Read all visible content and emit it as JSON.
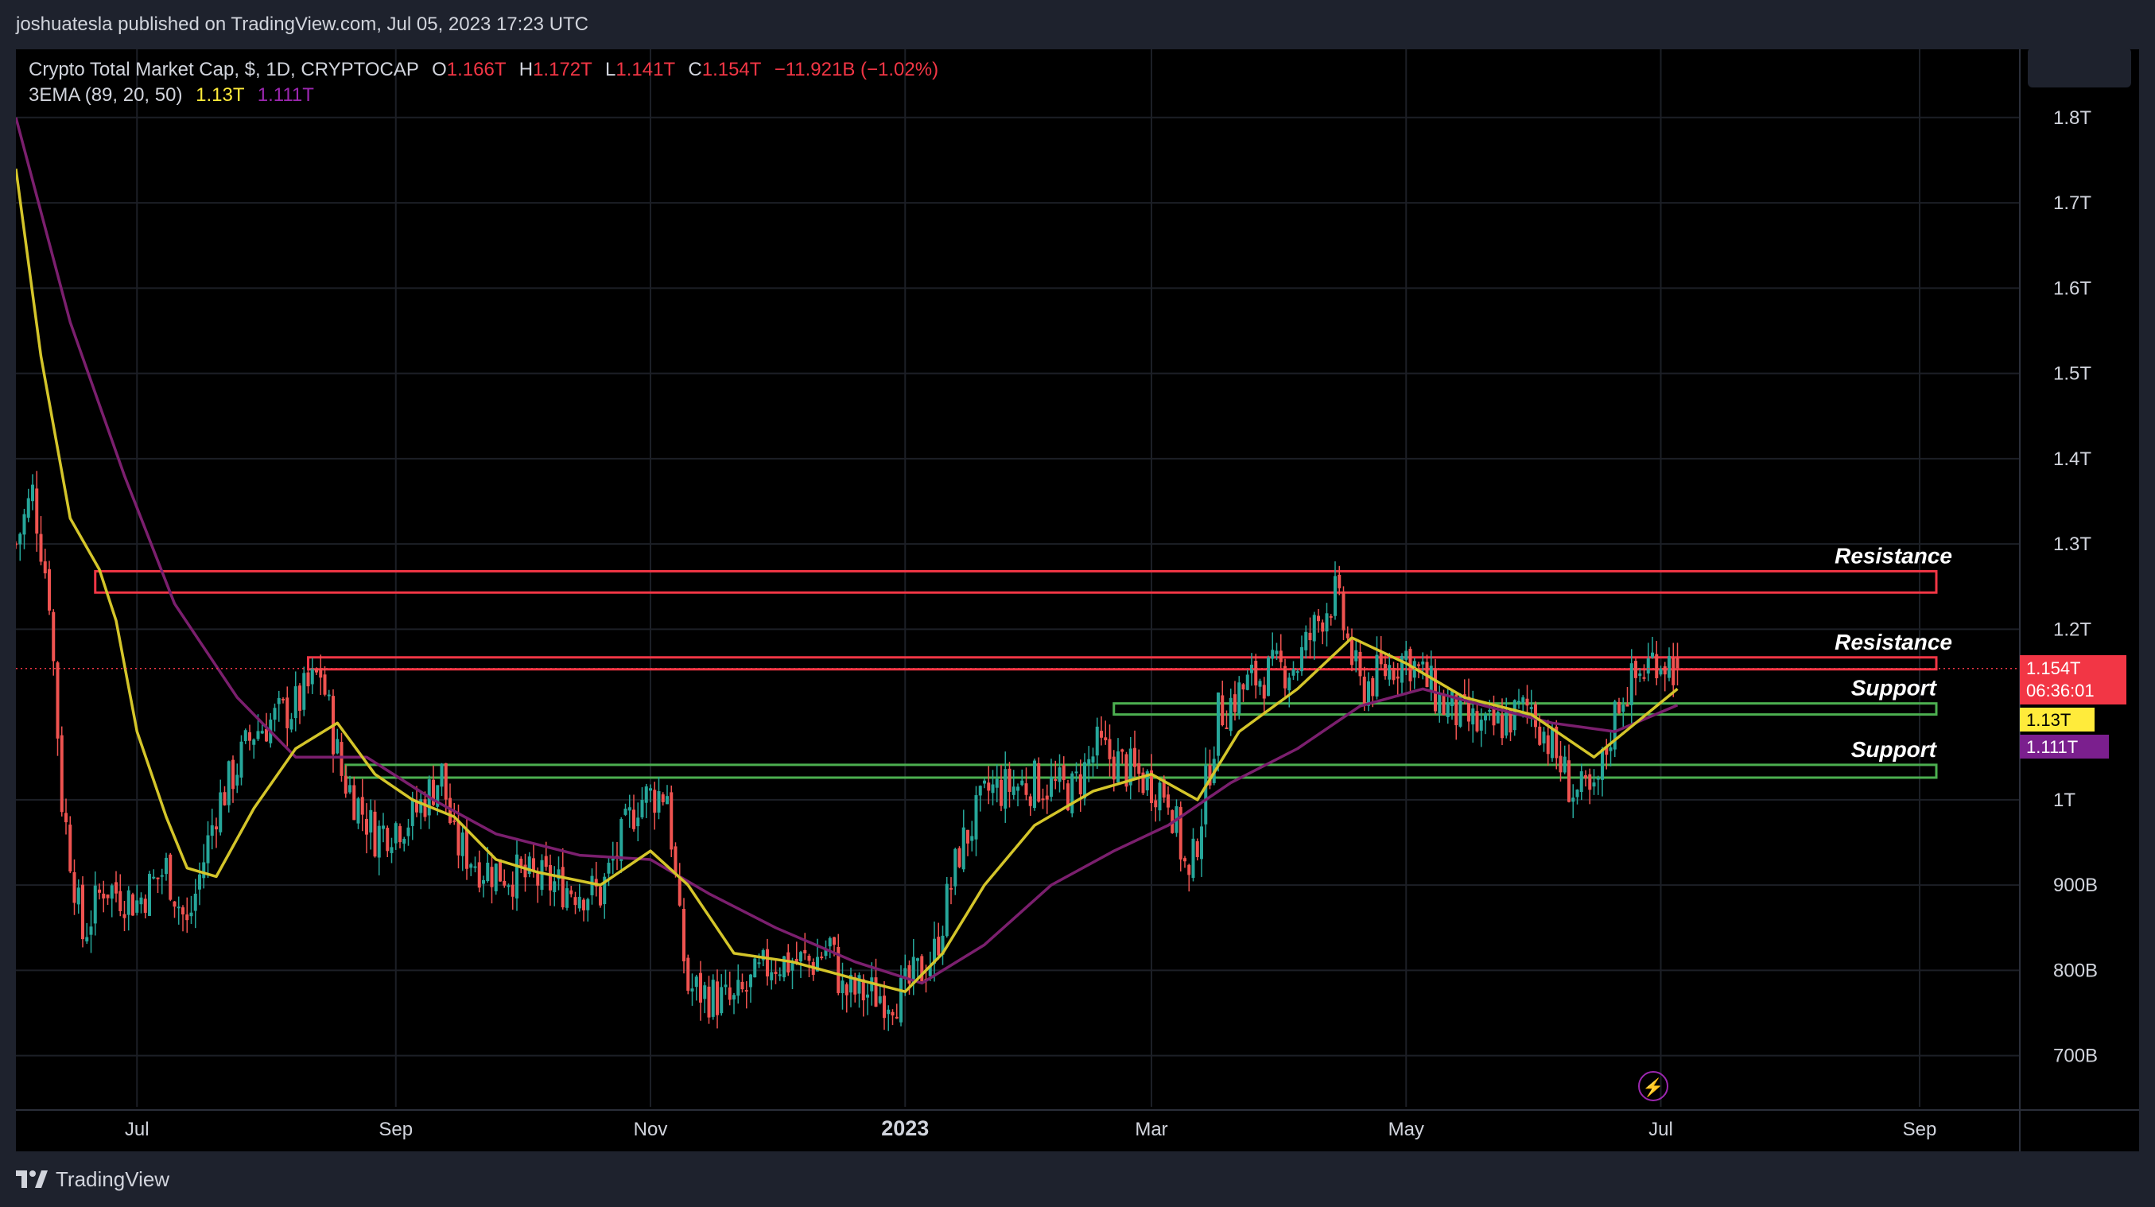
{
  "header": {
    "published_line": "joshuatesla published on TradingView.com, Jul 05, 2023 17:23 UTC"
  },
  "legend": {
    "symbol": "Crypto Total Market Cap, $, 1D, CRYPTOCAP",
    "o_label": "O",
    "o_value": "1.166T",
    "h_label": "H",
    "h_value": "1.172T",
    "l_label": "L",
    "l_value": "1.141T",
    "c_label": "C",
    "c_value": "1.154T",
    "change": "−11.921B (−1.02%)",
    "indicator": "3EMA (89, 20, 50)",
    "ema_fast_value": "1.13T",
    "ema_slow_value": "1.111T"
  },
  "price_tags": {
    "last_price": "1.154T",
    "countdown": "06:36:01",
    "ema_fast": "1.13T",
    "ema_slow": "1.111T"
  },
  "footer": {
    "brand": "TradingView"
  },
  "colors": {
    "up": "#26a69a",
    "down": "#ef5350",
    "ema_fast": "#d4c52a",
    "ema_slow": "#7b1f6e",
    "resistance": "#f23645",
    "support": "#4caf50",
    "background": "#000000",
    "frame": "#1e222d",
    "text": "#d1d4dc"
  },
  "chart_data": {
    "type": "candlestick",
    "title": "Crypto Total Market Cap, $, 1D, CRYPTOCAP",
    "ylim": [
      640,
      1880
    ],
    "y_unit": "B",
    "y_ticks": [
      {
        "value": 1800,
        "label": "1.8T"
      },
      {
        "value": 1700,
        "label": "1.7T"
      },
      {
        "value": 1600,
        "label": "1.6T"
      },
      {
        "value": 1500,
        "label": "1.5T"
      },
      {
        "value": 1400,
        "label": "1.4T"
      },
      {
        "value": 1300,
        "label": "1.3T"
      },
      {
        "value": 1200,
        "label": "1.2T"
      },
      {
        "value": 1000,
        "label": "1T"
      },
      {
        "value": 900,
        "label": "900B"
      },
      {
        "value": 800,
        "label": "800B"
      },
      {
        "value": 700,
        "label": "700B"
      }
    ],
    "x_ticks": [
      {
        "date": "2022-07-01",
        "label": "Jul",
        "bold": false
      },
      {
        "date": "2022-09-01",
        "label": "Sep",
        "bold": false
      },
      {
        "date": "2022-11-01",
        "label": "Nov",
        "bold": false
      },
      {
        "date": "2023-01-01",
        "label": "2023",
        "bold": true
      },
      {
        "date": "2023-03-01",
        "label": "Mar",
        "bold": false
      },
      {
        "date": "2023-05-01",
        "label": "May",
        "bold": false
      },
      {
        "date": "2023-07-01",
        "label": "Jul",
        "bold": false
      },
      {
        "date": "2023-09-01",
        "label": "Sep",
        "bold": false
      }
    ],
    "x_range": [
      "2022-06-02",
      "2023-09-25"
    ],
    "close_series": [
      {
        "date": "2022-06-02",
        "close": 1300
      },
      {
        "date": "2022-06-06",
        "close": 1360
      },
      {
        "date": "2022-06-10",
        "close": 1240
      },
      {
        "date": "2022-06-13",
        "close": 1000
      },
      {
        "date": "2022-06-18",
        "close": 840
      },
      {
        "date": "2022-06-23",
        "close": 900
      },
      {
        "date": "2022-07-01",
        "close": 880
      },
      {
        "date": "2022-07-08",
        "close": 920
      },
      {
        "date": "2022-07-13",
        "close": 850
      },
      {
        "date": "2022-07-20",
        "close": 990
      },
      {
        "date": "2022-07-29",
        "close": 1080
      },
      {
        "date": "2022-08-08",
        "close": 1110
      },
      {
        "date": "2022-08-14",
        "close": 1150
      },
      {
        "date": "2022-08-19",
        "close": 1030
      },
      {
        "date": "2022-08-27",
        "close": 960
      },
      {
        "date": "2022-09-05",
        "close": 980
      },
      {
        "date": "2022-09-12",
        "close": 1030
      },
      {
        "date": "2022-09-15",
        "close": 950
      },
      {
        "date": "2022-09-22",
        "close": 920
      },
      {
        "date": "2022-10-01",
        "close": 910
      },
      {
        "date": "2022-10-10",
        "close": 900
      },
      {
        "date": "2022-10-20",
        "close": 890
      },
      {
        "date": "2022-10-29",
        "close": 1000
      },
      {
        "date": "2022-11-05",
        "close": 1010
      },
      {
        "date": "2022-11-08",
        "close": 850
      },
      {
        "date": "2022-11-10",
        "close": 780
      },
      {
        "date": "2022-11-21",
        "close": 760
      },
      {
        "date": "2022-11-30",
        "close": 810
      },
      {
        "date": "2022-12-10",
        "close": 810
      },
      {
        "date": "2022-12-14",
        "close": 830
      },
      {
        "date": "2022-12-17",
        "close": 775
      },
      {
        "date": "2022-12-31",
        "close": 770
      },
      {
        "date": "2023-01-08",
        "close": 820
      },
      {
        "date": "2023-01-14",
        "close": 940
      },
      {
        "date": "2023-01-21",
        "close": 1010
      },
      {
        "date": "2023-02-01",
        "close": 1020
      },
      {
        "date": "2023-02-10",
        "close": 1010
      },
      {
        "date": "2023-02-16",
        "close": 1060
      },
      {
        "date": "2023-02-25",
        "close": 1030
      },
      {
        "date": "2023-03-05",
        "close": 1010
      },
      {
        "date": "2023-03-10",
        "close": 900
      },
      {
        "date": "2023-03-17",
        "close": 1100
      },
      {
        "date": "2023-03-25",
        "close": 1140
      },
      {
        "date": "2023-04-05",
        "close": 1160
      },
      {
        "date": "2023-04-11",
        "close": 1220
      },
      {
        "date": "2023-04-14",
        "close": 1240
      },
      {
        "date": "2023-04-20",
        "close": 1130
      },
      {
        "date": "2023-05-01",
        "close": 1170
      },
      {
        "date": "2023-05-10",
        "close": 1110
      },
      {
        "date": "2023-05-20",
        "close": 1080
      },
      {
        "date": "2023-05-31",
        "close": 1110
      },
      {
        "date": "2023-06-10",
        "close": 1010
      },
      {
        "date": "2023-06-15",
        "close": 1000
      },
      {
        "date": "2023-06-21",
        "close": 1120
      },
      {
        "date": "2023-06-30",
        "close": 1170
      },
      {
        "date": "2023-07-05",
        "close": 1154
      }
    ],
    "ema_fast": [
      {
        "date": "2022-06-02",
        "value": 1740
      },
      {
        "date": "2022-06-08",
        "value": 1520
      },
      {
        "date": "2022-06-15",
        "value": 1330
      },
      {
        "date": "2022-06-22",
        "value": 1270
      },
      {
        "date": "2022-06-26",
        "value": 1210
      },
      {
        "date": "2022-07-01",
        "value": 1080
      },
      {
        "date": "2022-07-08",
        "value": 980
      },
      {
        "date": "2022-07-13",
        "value": 920
      },
      {
        "date": "2022-07-20",
        "value": 910
      },
      {
        "date": "2022-07-29",
        "value": 990
      },
      {
        "date": "2022-08-08",
        "value": 1060
      },
      {
        "date": "2022-08-18",
        "value": 1090
      },
      {
        "date": "2022-08-27",
        "value": 1030
      },
      {
        "date": "2022-09-05",
        "value": 1000
      },
      {
        "date": "2022-09-15",
        "value": 980
      },
      {
        "date": "2022-09-25",
        "value": 930
      },
      {
        "date": "2022-10-05",
        "value": 915
      },
      {
        "date": "2022-10-20",
        "value": 900
      },
      {
        "date": "2022-11-01",
        "value": 940
      },
      {
        "date": "2022-11-10",
        "value": 900
      },
      {
        "date": "2022-11-21",
        "value": 820
      },
      {
        "date": "2022-12-05",
        "value": 810
      },
      {
        "date": "2022-12-20",
        "value": 790
      },
      {
        "date": "2023-01-01",
        "value": 775
      },
      {
        "date": "2023-01-10",
        "value": 820
      },
      {
        "date": "2023-01-20",
        "value": 900
      },
      {
        "date": "2023-02-01",
        "value": 970
      },
      {
        "date": "2023-02-15",
        "value": 1010
      },
      {
        "date": "2023-03-01",
        "value": 1030
      },
      {
        "date": "2023-03-12",
        "value": 1000
      },
      {
        "date": "2023-03-22",
        "value": 1080
      },
      {
        "date": "2023-04-05",
        "value": 1130
      },
      {
        "date": "2023-04-18",
        "value": 1190
      },
      {
        "date": "2023-05-01",
        "value": 1160
      },
      {
        "date": "2023-05-15",
        "value": 1120
      },
      {
        "date": "2023-05-31",
        "value": 1100
      },
      {
        "date": "2023-06-15",
        "value": 1050
      },
      {
        "date": "2023-06-25",
        "value": 1090
      },
      {
        "date": "2023-07-05",
        "value": 1130
      }
    ],
    "ema_slow": [
      {
        "date": "2022-06-02",
        "value": 1800
      },
      {
        "date": "2022-06-15",
        "value": 1560
      },
      {
        "date": "2022-06-28",
        "value": 1380
      },
      {
        "date": "2022-07-10",
        "value": 1230
      },
      {
        "date": "2022-07-25",
        "value": 1120
      },
      {
        "date": "2022-08-08",
        "value": 1050
      },
      {
        "date": "2022-08-25",
        "value": 1050
      },
      {
        "date": "2022-09-10",
        "value": 1000
      },
      {
        "date": "2022-09-25",
        "value": 960
      },
      {
        "date": "2022-10-15",
        "value": 935
      },
      {
        "date": "2022-11-01",
        "value": 930
      },
      {
        "date": "2022-11-15",
        "value": 890
      },
      {
        "date": "2022-12-01",
        "value": 850
      },
      {
        "date": "2022-12-20",
        "value": 810
      },
      {
        "date": "2023-01-05",
        "value": 785
      },
      {
        "date": "2023-01-20",
        "value": 830
      },
      {
        "date": "2023-02-05",
        "value": 900
      },
      {
        "date": "2023-02-20",
        "value": 940
      },
      {
        "date": "2023-03-05",
        "value": 970
      },
      {
        "date": "2023-03-20",
        "value": 1020
      },
      {
        "date": "2023-04-05",
        "value": 1060
      },
      {
        "date": "2023-04-20",
        "value": 1110
      },
      {
        "date": "2023-05-05",
        "value": 1130
      },
      {
        "date": "2023-05-20",
        "value": 1110
      },
      {
        "date": "2023-06-05",
        "value": 1090
      },
      {
        "date": "2023-06-20",
        "value": 1080
      },
      {
        "date": "2023-07-05",
        "value": 1111
      }
    ],
    "current_price": 1154,
    "zones": [
      {
        "kind": "resistance",
        "label": "Resistance",
        "from": "2022-06-21",
        "to": "2023-09-05",
        "low": 1243,
        "high": 1268
      },
      {
        "kind": "resistance",
        "label": "Resistance",
        "from": "2022-08-11",
        "to": "2023-09-05",
        "low": 1153,
        "high": 1167
      },
      {
        "kind": "support",
        "label": "Support",
        "from": "2023-02-20",
        "to": "2023-09-05",
        "low": 1100,
        "high": 1113
      },
      {
        "kind": "support",
        "label": "Support",
        "from": "2022-08-20",
        "to": "2023-09-05",
        "low": 1026,
        "high": 1041
      }
    ]
  }
}
